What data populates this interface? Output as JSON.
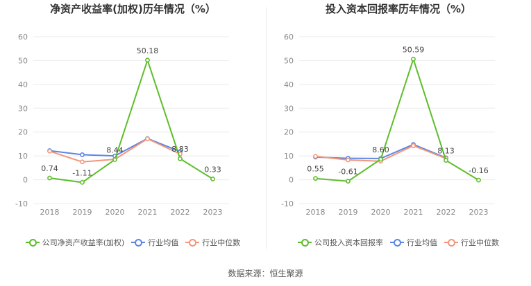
{
  "source_label": "数据来源：恒生聚源",
  "colors": {
    "company": "#5dbd2b",
    "avg": "#5b86e5",
    "median": "#f3967a",
    "grid": "#ebebeb",
    "axis_text": "#888888"
  },
  "chart_data": [
    {
      "type": "line",
      "title": "净资产收益率(加权)历年情况（%）",
      "categories": [
        "2018",
        "2019",
        "2020",
        "2021",
        "2022",
        "2023"
      ],
      "ylim": [
        -10,
        60
      ],
      "yticks": [
        -10,
        0,
        10,
        20,
        30,
        40,
        50,
        60
      ],
      "grid": true,
      "legend_position": "bottom",
      "series": [
        {
          "name": "公司净资产收益率(加权)",
          "key": "company",
          "values": [
            0.74,
            -1.11,
            8.44,
            50.18,
            8.83,
            0.33
          ],
          "labels": [
            "0.74",
            "-1.11",
            "8.44",
            "50.18",
            "8.83",
            "0.33"
          ]
        },
        {
          "name": "行业均值",
          "key": "avg",
          "values": [
            12.2,
            10.5,
            10.0,
            17.3,
            11.8,
            null
          ]
        },
        {
          "name": "行业中位数",
          "key": "median",
          "values": [
            12.0,
            7.5,
            8.6,
            17.2,
            10.8,
            null
          ]
        }
      ]
    },
    {
      "type": "line",
      "title": "投入资本回报率历年情况（%）",
      "categories": [
        "2018",
        "2019",
        "2020",
        "2021",
        "2022",
        "2023"
      ],
      "ylim": [
        -10,
        60
      ],
      "yticks": [
        -10,
        0,
        10,
        20,
        30,
        40,
        50,
        60
      ],
      "grid": true,
      "legend_position": "bottom",
      "series": [
        {
          "name": "公司投入资本回报率",
          "key": "company",
          "values": [
            0.55,
            -0.61,
            8.6,
            50.59,
            8.13,
            -0.16
          ],
          "labels": [
            "0.55",
            "-0.61",
            "8.60",
            "50.59",
            "8.13",
            "-0.16"
          ]
        },
        {
          "name": "行业均值",
          "key": "avg",
          "values": [
            9.5,
            9.0,
            8.9,
            14.8,
            9.2,
            null
          ]
        },
        {
          "name": "行业中位数",
          "key": "median",
          "values": [
            9.8,
            8.3,
            7.8,
            14.3,
            8.9,
            null
          ]
        }
      ]
    }
  ]
}
